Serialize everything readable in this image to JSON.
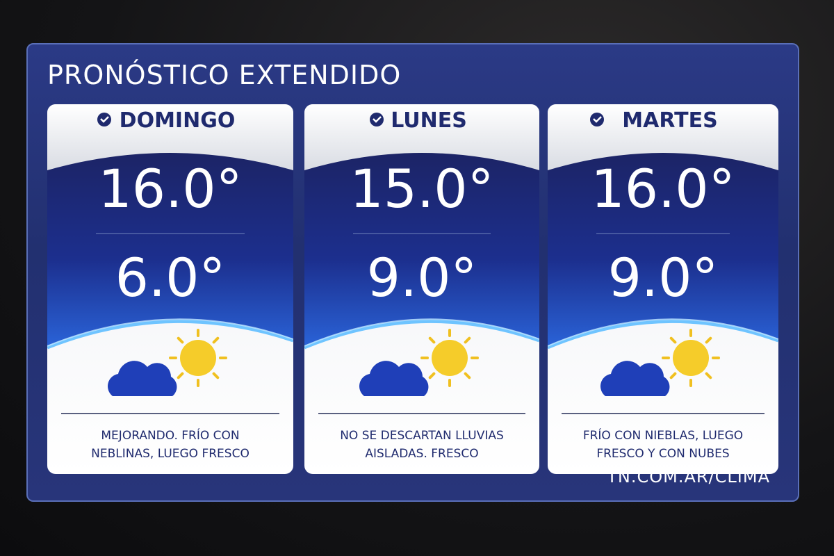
{
  "title": "PRONÓSTICO EXTENDIDO",
  "days": [
    {
      "name": "DOMINGO",
      "max": "16.0°",
      "min": "6.0°",
      "description": [
        "MEJORANDO. FRÍO CON",
        "NEBLINAS, LUEGO FRESCO"
      ]
    },
    {
      "name": "LUNES",
      "max": "15.0°",
      "min": "9.0°",
      "description": [
        "NO SE DESCARTAN LLUVIAS",
        "AISLADAS. FRESCO"
      ]
    },
    {
      "name": "MARTES",
      "max": "16.0°",
      "min": "9.0°",
      "description": [
        "FRÍO CON NIEBLAS, LUEGO",
        "FRESCO Y CON NUBES"
      ]
    }
  ],
  "footer": "TN.COM.AR/CLIMA"
}
